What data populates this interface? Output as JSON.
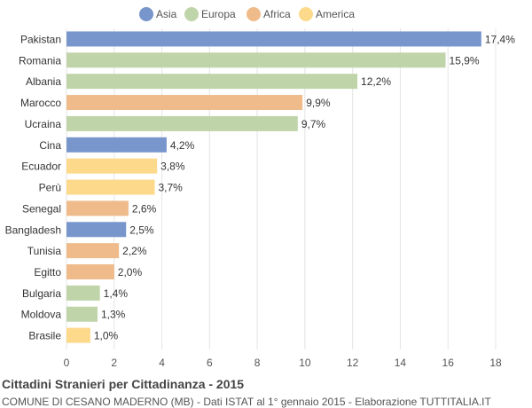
{
  "chart_data": {
    "type": "bar",
    "orientation": "horizontal",
    "title": "Cittadini Stranieri per Cittadinanza - 2015",
    "subtitle": "COMUNE DI CESANO MADERNO (MB) - Dati ISTAT al 1° gennaio 2015 - Elaborazione TUTTITALIA.IT",
    "legend": {
      "position": "top-center",
      "items": [
        {
          "name": "Asia",
          "color": "#7896cc"
        },
        {
          "name": "Europa",
          "color": "#c0d4aa"
        },
        {
          "name": "Africa",
          "color": "#f0bb8a"
        },
        {
          "name": "America",
          "color": "#fdd98c"
        }
      ]
    },
    "categories": [
      "Pakistan",
      "Romania",
      "Albania",
      "Marocco",
      "Ucraina",
      "Cina",
      "Ecuador",
      "Perù",
      "Senegal",
      "Bangladesh",
      "Tunisia",
      "Egitto",
      "Bulgaria",
      "Moldova",
      "Brasile"
    ],
    "values": [
      17.4,
      15.9,
      12.2,
      9.9,
      9.7,
      4.2,
      3.8,
      3.7,
      2.6,
      2.5,
      2.2,
      2.0,
      1.4,
      1.3,
      1.0
    ],
    "value_labels": [
      "17,4%",
      "15,9%",
      "12,2%",
      "9,9%",
      "9,7%",
      "4,2%",
      "3,8%",
      "3,7%",
      "2,6%",
      "2,5%",
      "2,2%",
      "2,0%",
      "1,4%",
      "1,3%",
      "1,0%"
    ],
    "groups": [
      "Asia",
      "Europa",
      "Europa",
      "Africa",
      "Europa",
      "Asia",
      "America",
      "America",
      "Africa",
      "Asia",
      "Africa",
      "Africa",
      "Europa",
      "Europa",
      "America"
    ],
    "xlim": [
      0,
      18
    ],
    "xticks": [
      0,
      2,
      4,
      6,
      8,
      10,
      12,
      14,
      16,
      18
    ],
    "grid": true,
    "colors": {
      "grid": "#e4e4e4",
      "axis_text": "#555555",
      "label_text": "#333333"
    }
  }
}
